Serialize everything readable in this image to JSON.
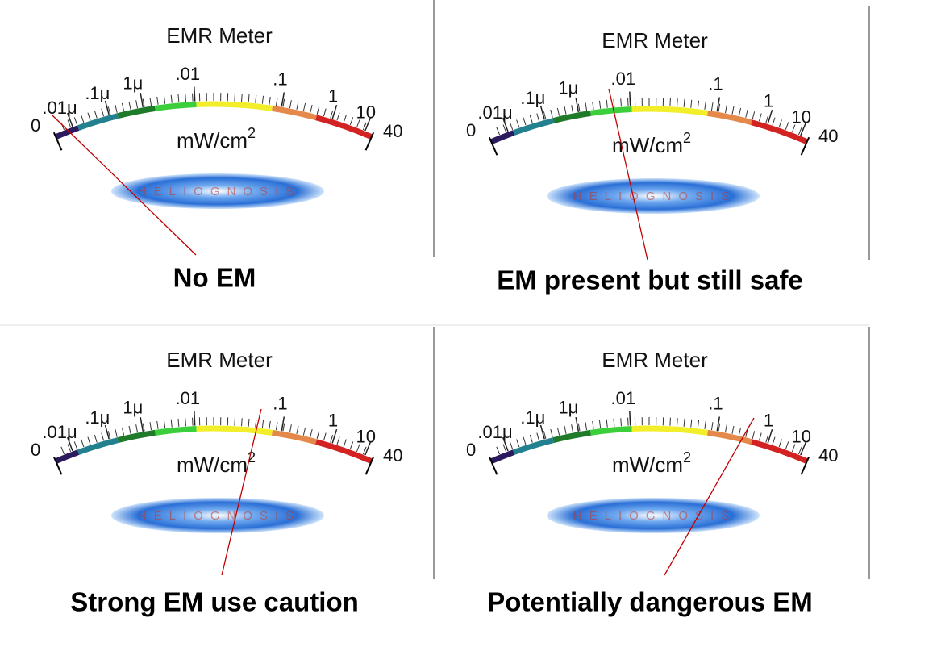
{
  "panels": [
    {
      "title": "EMR Meter",
      "caption": "No EM"
    },
    {
      "title": "EMR Meter",
      "caption": "EM present but still safe"
    },
    {
      "title": "EMR Meter",
      "caption": "Strong EM use caution"
    },
    {
      "title": "EMR Meter",
      "caption": "Potentially dangerous EM"
    }
  ],
  "scale_labels": [
    "0",
    ".01μ",
    ".1μ",
    "1μ",
    ".01",
    ".1",
    "1",
    "10",
    "40"
  ],
  "unit": "mW/cm",
  "unit_exponent": "2",
  "watermark": "HELIOGNOSIS"
}
